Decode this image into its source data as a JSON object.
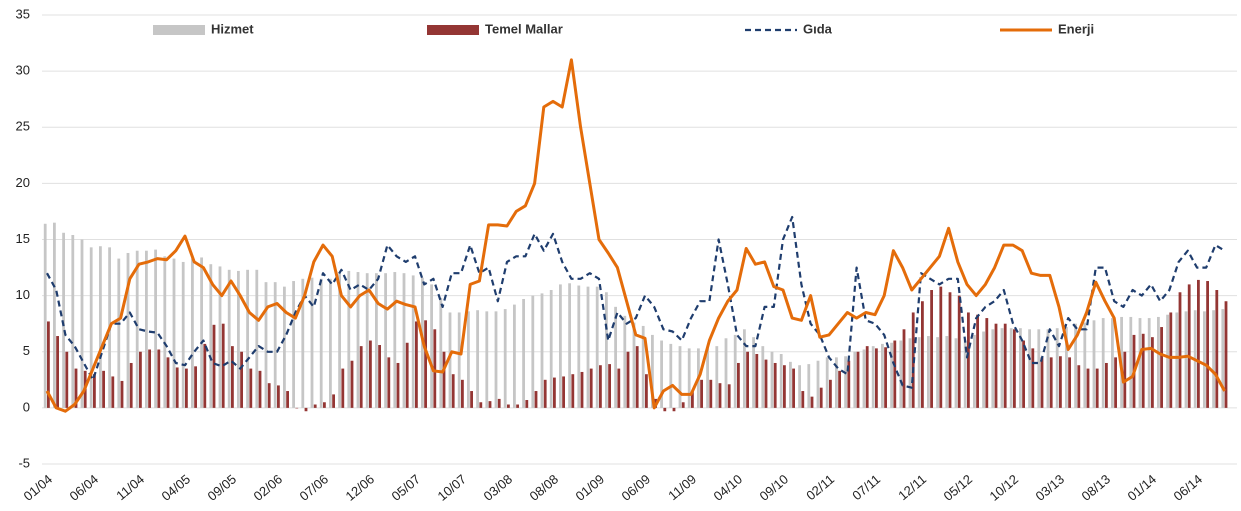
{
  "chart_data": {
    "type": "bar_line",
    "categories": [
      "01/04",
      null,
      null,
      null,
      null,
      "06/04",
      null,
      null,
      null,
      null,
      "11/04",
      null,
      null,
      null,
      null,
      "04/05",
      null,
      null,
      null,
      null,
      "09/05",
      null,
      null,
      null,
      null,
      "02/06",
      null,
      null,
      null,
      null,
      "07/06",
      null,
      null,
      null,
      null,
      "12/06",
      null,
      null,
      null,
      null,
      "05/07",
      null,
      null,
      null,
      null,
      "10/07",
      null,
      null,
      null,
      null,
      "03/08",
      null,
      null,
      null,
      null,
      "08/08",
      null,
      null,
      null,
      null,
      "01/09",
      null,
      null,
      null,
      null,
      "06/09",
      null,
      null,
      null,
      null,
      "11/09",
      null,
      null,
      null,
      null,
      "04/10",
      null,
      null,
      null,
      null,
      "09/10",
      null,
      null,
      null,
      null,
      "02/11",
      null,
      null,
      null,
      null,
      "07/11",
      null,
      null,
      null,
      null,
      "12/11",
      null,
      null,
      null,
      null,
      "05/12",
      null,
      null,
      null,
      null,
      "10/12",
      null,
      null,
      null,
      null,
      "03/13",
      null,
      null,
      null,
      null,
      "08/13",
      null,
      null,
      null,
      null,
      "01/14",
      null,
      null,
      null,
      null,
      "06/14",
      null,
      null,
      null
    ],
    "series": [
      {
        "name": "Hizmet",
        "type": "bar",
        "color": "#c6c6c6",
        "values": [
          16.4,
          16.5,
          15.6,
          15.4,
          15,
          14.3,
          14.4,
          14.3,
          13.3,
          13.8,
          14,
          14,
          14.1,
          13.5,
          13.3,
          13,
          13.3,
          13.4,
          12.8,
          12.6,
          12.3,
          12.2,
          12.3,
          12.3,
          11.2,
          11.2,
          10.8,
          11.3,
          11.5,
          11.6,
          11.5,
          11.5,
          12,
          12.2,
          12.1,
          12,
          12,
          12,
          12.1,
          12,
          11.8,
          11.6,
          11,
          9.8,
          8.5,
          8.5,
          8.6,
          8.7,
          8.6,
          8.6,
          8.8,
          9.2,
          9.7,
          10,
          10.2,
          10.5,
          11,
          11.1,
          10.9,
          10.8,
          10.8,
          10.3,
          9,
          8.2,
          7.6,
          7.3,
          6.5,
          6,
          5.7,
          5.5,
          5.3,
          5.3,
          5.3,
          5.5,
          6.2,
          6.5,
          7,
          6.3,
          5.5,
          5,
          4.8,
          4.1,
          3.8,
          3.9,
          4.2,
          4.5,
          4.5,
          4.6,
          5,
          5.2,
          5.5,
          5.7,
          5.8,
          6,
          6.2,
          6.3,
          6.4,
          6.3,
          6.4,
          6.2,
          6,
          6.5,
          6.8,
          7,
          7.1,
          7.1,
          7.1,
          7,
          7,
          7,
          7.1,
          7.2,
          7.5,
          7.6,
          7.8,
          8,
          8,
          8.1,
          8.1,
          8,
          8,
          8.1,
          8.3,
          8.5,
          8.6,
          8.7,
          8.6,
          8.7,
          8.8
        ]
      },
      {
        "name": "Temel Mallar",
        "type": "bar",
        "color": "#943634",
        "values": [
          7.7,
          6.4,
          5,
          3.5,
          3.3,
          3,
          3.3,
          2.8,
          2.4,
          4,
          5,
          5.2,
          5.2,
          4.5,
          3.6,
          3.5,
          3.7,
          5.7,
          7.4,
          7.5,
          5.5,
          5,
          3.5,
          3.3,
          2.2,
          2,
          1.5,
          0,
          -0.3,
          0.3,
          0.5,
          1.2,
          3.5,
          4.2,
          5.5,
          6,
          5.6,
          4.5,
          4,
          5.8,
          7.7,
          7.8,
          7,
          5,
          3,
          2.5,
          1.5,
          0.5,
          0.6,
          0.8,
          0.3,
          0.3,
          0.7,
          1.5,
          2.5,
          2.7,
          2.8,
          3,
          3.2,
          3.5,
          3.8,
          3.9,
          3.5,
          5,
          5.5,
          3,
          0.8,
          -0.3,
          -0.3,
          0.5,
          1.5,
          2.5,
          2.5,
          2.2,
          2.1,
          4,
          5,
          4.8,
          4.3,
          4,
          3.8,
          3.5,
          1.5,
          1,
          1.8,
          2.5,
          3.3,
          4.2,
          5,
          5.5,
          5.3,
          5.4,
          6,
          7,
          8.5,
          9.5,
          10.5,
          10.8,
          10.3,
          10,
          8.5,
          8.3,
          8,
          7.5,
          7.5,
          7,
          6,
          5.3,
          4.5,
          4.5,
          4.6,
          4.5,
          3.8,
          3.5,
          3.5,
          4,
          4.5,
          5,
          6.5,
          6.6,
          6.3,
          7.2,
          8.5,
          10.3,
          11,
          11.4,
          11.3,
          10.5,
          9.5
        ]
      },
      {
        "name": "Gıda",
        "type": "line",
        "dash": "dashed",
        "color": "#1f3d6e",
        "values": [
          12,
          10.5,
          6.5,
          5.5,
          4,
          2.5,
          5,
          7.5,
          7.5,
          8.5,
          7,
          6.8,
          6.7,
          5.5,
          4,
          3.8,
          5,
          6,
          4,
          3.7,
          4.2,
          3.5,
          4.5,
          5.5,
          5,
          5,
          6.5,
          8.5,
          10,
          9,
          12,
          11,
          12.3,
          10.5,
          11,
          10.5,
          11.5,
          14.5,
          13.5,
          13,
          13.5,
          11,
          11.5,
          9,
          12,
          12,
          14.5,
          12,
          12.5,
          9.5,
          13,
          13.5,
          13.5,
          15.5,
          14,
          15.5,
          13,
          11.5,
          11.5,
          12,
          11.5,
          6,
          8.5,
          7.5,
          8,
          10,
          9,
          7,
          6.8,
          6,
          8,
          9.5,
          9.5,
          15,
          11,
          6.5,
          5.5,
          5.5,
          9,
          9,
          15,
          17,
          11,
          7.5,
          6.5,
          4.5,
          3.5,
          3,
          12.5,
          7.8,
          7.5,
          6.5,
          4,
          2,
          1.8,
          12,
          11.5,
          11,
          11.5,
          11.5,
          4.5,
          8,
          9,
          9.5,
          10.5,
          7.5,
          6,
          4,
          4,
          7,
          5.5,
          8,
          7,
          7,
          12.5,
          12.5,
          9.5,
          9,
          10.5,
          10,
          11,
          9.5,
          10.5,
          13,
          14,
          12.5,
          12.5,
          14.5,
          14
        ]
      },
      {
        "name": "Enerji",
        "type": "line",
        "dash": "solid",
        "color": "#e46c0a",
        "values": [
          1.5,
          0,
          -0.3,
          0.3,
          1.5,
          3.5,
          5.5,
          7.5,
          8,
          11.5,
          12.8,
          13,
          13.3,
          13.2,
          14,
          15.3,
          13,
          12.5,
          11,
          10,
          11.3,
          10,
          8.5,
          7.8,
          9,
          9.3,
          8.5,
          8,
          10,
          13,
          14.5,
          13.5,
          10,
          9,
          10,
          10.5,
          9.3,
          8.8,
          9.5,
          9.2,
          9,
          5.5,
          3.3,
          3.2,
          5,
          4.8,
          11,
          11.3,
          16.3,
          16.3,
          16.2,
          17.5,
          18,
          20,
          26.8,
          27.3,
          26.8,
          31,
          25,
          20,
          15,
          13.8,
          12.5,
          9.5,
          6.5,
          6.2,
          0,
          1.5,
          2,
          1.2,
          1.2,
          3,
          6,
          8,
          9.5,
          10.5,
          14.2,
          12.8,
          13,
          10.8,
          10.5,
          8,
          7.8,
          10,
          6.3,
          6.5,
          7.5,
          8.5,
          8,
          8.5,
          8.3,
          10,
          14,
          12.5,
          10.5,
          11.5,
          12.5,
          13.5,
          16,
          13,
          11,
          10,
          11,
          12.5,
          14.5,
          14.5,
          14,
          12,
          11.8,
          11.8,
          9,
          5.2,
          6.5,
          8.5,
          11.2,
          9.5,
          8,
          2.3,
          2.8,
          5.2,
          5.3,
          4.8,
          4.5,
          4.5,
          4.6,
          4.2,
          3.8,
          3,
          1.5
        ]
      }
    ],
    "ylim": [
      -5,
      35
    ],
    "yticks": [
      -5,
      0,
      5,
      10,
      15,
      20,
      25,
      30,
      35
    ],
    "grid": true,
    "legend": "top"
  }
}
